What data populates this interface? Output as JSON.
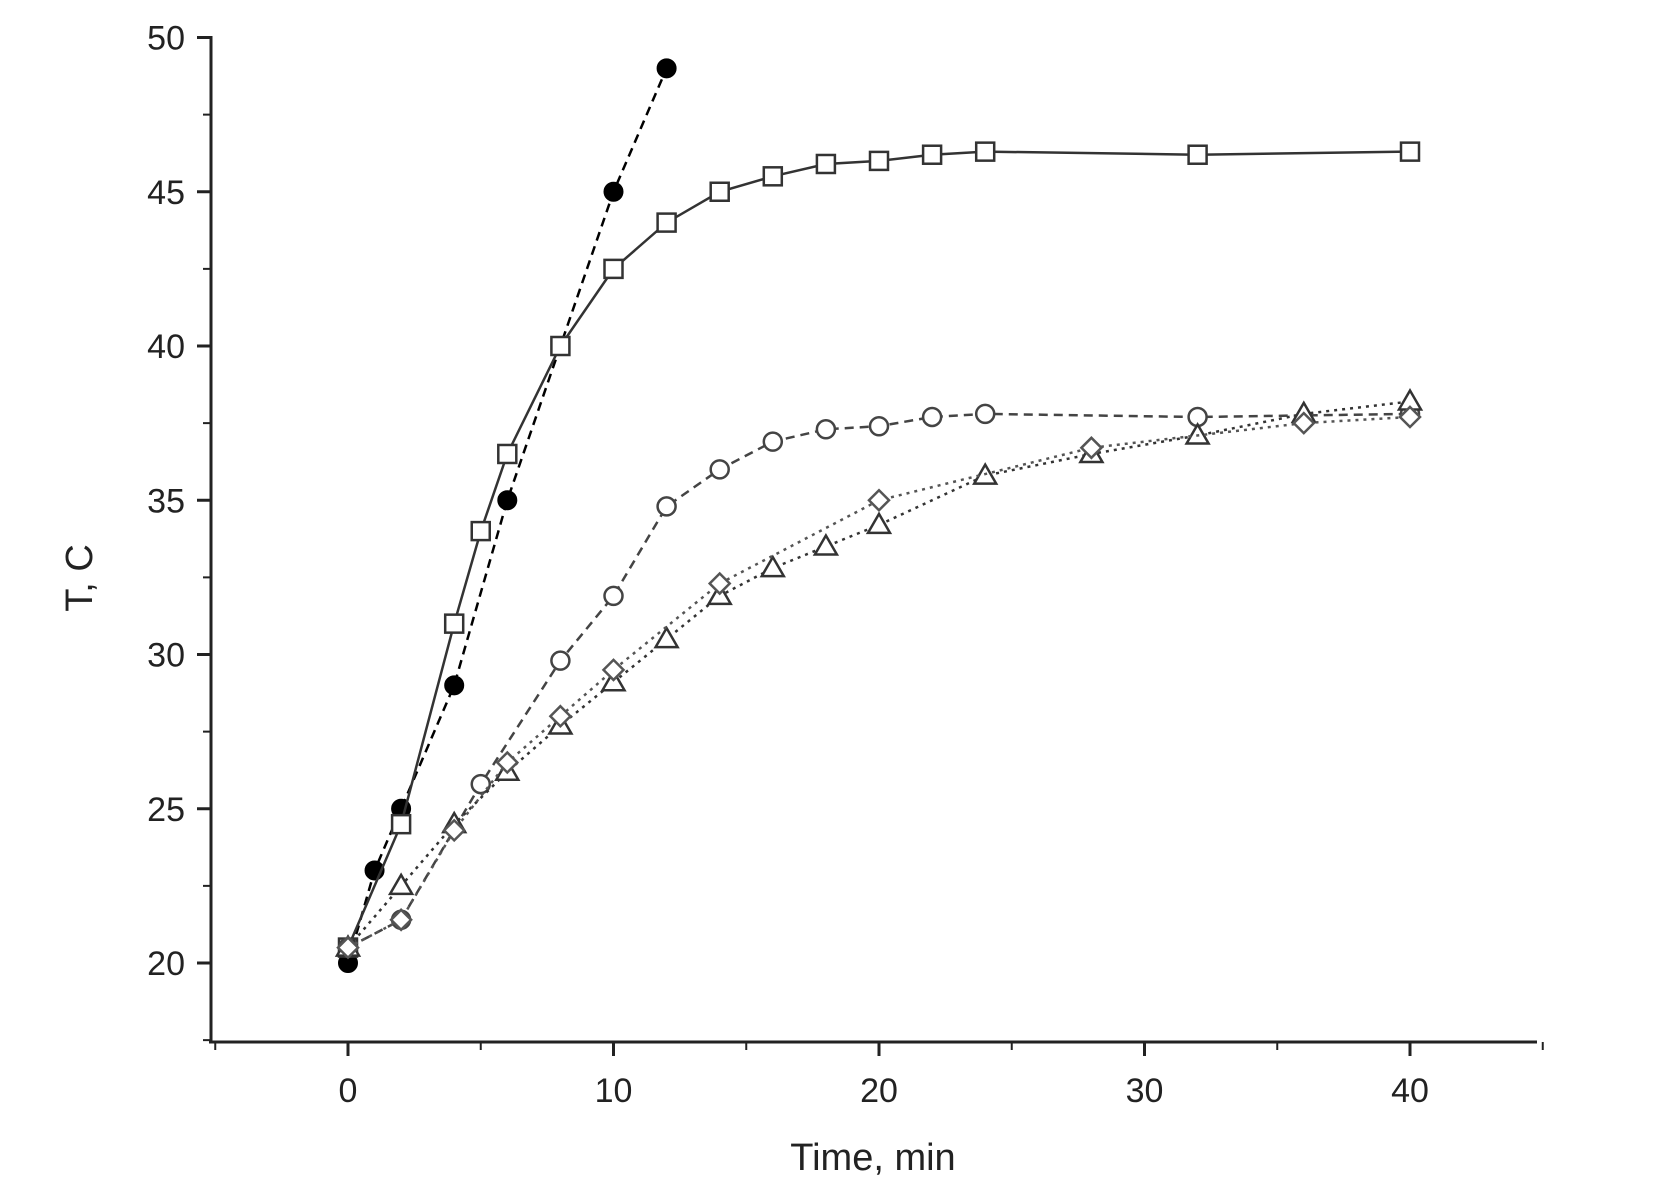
{
  "chart_data": {
    "type": "line",
    "title": "",
    "xlabel": "Time, min",
    "ylabel": "T, C",
    "xlim": [
      -5,
      45
    ],
    "ylim": [
      17.5,
      50
    ],
    "xticks": [
      0,
      10,
      20,
      30,
      40
    ],
    "yticks": [
      20,
      25,
      30,
      35,
      40,
      45,
      50
    ],
    "xtick_labels": [
      "0",
      "10",
      "20",
      "30",
      "40"
    ],
    "ytick_labels": [
      "20",
      "25",
      "30",
      "35",
      "40",
      "45",
      "50"
    ],
    "grid": false,
    "legend": "none",
    "series": [
      {
        "marker": "filled-circle",
        "line": "dashed",
        "color": "#000000",
        "x": [
          0,
          1,
          2,
          4,
          6,
          10,
          12
        ],
        "y": [
          20.0,
          23.0,
          25.0,
          29.0,
          35.0,
          45.0,
          49.0
        ]
      },
      {
        "marker": "open-square",
        "line": "solid",
        "color": "#333333",
        "x": [
          0,
          2,
          4,
          5,
          6,
          8,
          10,
          12,
          14,
          16,
          18,
          20,
          22,
          24,
          32,
          40
        ],
        "y": [
          20.5,
          24.5,
          31.0,
          34.0,
          36.5,
          40.0,
          42.5,
          44.0,
          45.0,
          45.5,
          45.9,
          46.0,
          46.2,
          46.3,
          46.2,
          46.3
        ]
      },
      {
        "marker": "open-circle",
        "line": "dashed",
        "color": "#444444",
        "x": [
          0,
          2,
          5,
          8,
          10,
          12,
          14,
          16,
          18,
          20,
          22,
          24,
          32,
          40
        ],
        "y": [
          20.5,
          21.4,
          25.8,
          29.8,
          31.9,
          34.8,
          36.0,
          36.9,
          37.3,
          37.4,
          37.7,
          37.8,
          37.7,
          37.8
        ]
      },
      {
        "marker": "open-triangle",
        "line": "dotted",
        "color": "#333333",
        "x": [
          0,
          2,
          4,
          6,
          8,
          10,
          12,
          14,
          16,
          18,
          20,
          24,
          28,
          32,
          36,
          40
        ],
        "y": [
          20.5,
          22.5,
          24.5,
          26.2,
          27.7,
          29.1,
          30.5,
          31.9,
          32.8,
          33.5,
          34.2,
          35.8,
          36.5,
          37.1,
          37.8,
          38.2
        ]
      },
      {
        "marker": "open-diamond",
        "line": "dotted",
        "color": "#555555",
        "x": [
          0,
          2,
          4,
          6,
          8,
          10,
          14,
          20,
          28,
          36,
          40
        ],
        "y": [
          20.5,
          21.4,
          24.3,
          26.5,
          28.0,
          29.5,
          32.3,
          35.0,
          36.7,
          37.5,
          37.7
        ]
      }
    ]
  }
}
